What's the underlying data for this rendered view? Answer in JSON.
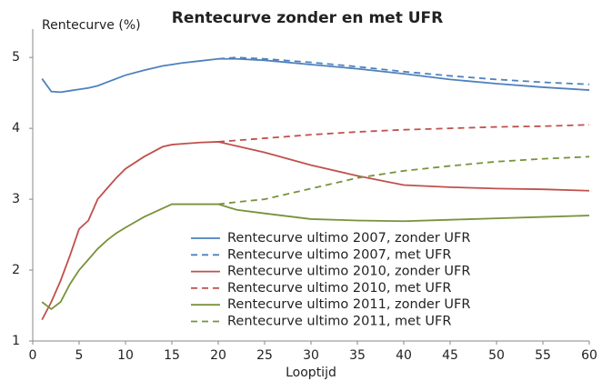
{
  "chart_data": {
    "type": "line",
    "title": "Rentecurve zonder en met UFR",
    "y_label": "Rentecurve (%)",
    "x_label": "Looptijd",
    "x": [
      1,
      2,
      3,
      4,
      5,
      6,
      7,
      8,
      9,
      10,
      12,
      14,
      15,
      16,
      18,
      20,
      22,
      25,
      30,
      35,
      40,
      45,
      50,
      55,
      60
    ],
    "series": [
      {
        "name": "Rentecurve ultimo 2007, zonder UFR",
        "color": "#4f81bd",
        "dashed": false,
        "values": [
          4.7,
          4.52,
          4.51,
          4.53,
          4.55,
          4.57,
          4.6,
          4.65,
          4.7,
          4.75,
          4.82,
          4.88,
          4.9,
          4.92,
          4.95,
          4.98,
          4.98,
          4.96,
          4.9,
          4.84,
          4.77,
          4.69,
          4.63,
          4.58,
          4.54
        ]
      },
      {
        "name": "Rentecurve ultimo 2007, met UFR",
        "color": "#4f81bd",
        "dashed": true,
        "values": [
          null,
          null,
          null,
          null,
          null,
          null,
          null,
          null,
          null,
          null,
          null,
          null,
          null,
          null,
          null,
          4.98,
          5.0,
          4.98,
          4.93,
          4.87,
          4.8,
          4.74,
          4.69,
          4.65,
          4.62
        ]
      },
      {
        "name": "Rentecurve ultimo 2010, zonder UFR",
        "color": "#c0504d",
        "dashed": false,
        "values": [
          1.3,
          1.55,
          1.85,
          2.2,
          2.58,
          2.7,
          3.0,
          3.15,
          3.3,
          3.43,
          3.6,
          3.74,
          3.77,
          3.78,
          3.8,
          3.81,
          3.75,
          3.66,
          3.48,
          3.33,
          3.2,
          3.17,
          3.15,
          3.14,
          3.12
        ]
      },
      {
        "name": "Rentecurve ultimo 2010, met UFR",
        "color": "#c0504d",
        "dashed": true,
        "values": [
          null,
          null,
          null,
          null,
          null,
          null,
          null,
          null,
          null,
          null,
          null,
          null,
          null,
          null,
          null,
          3.81,
          3.83,
          3.86,
          3.91,
          3.95,
          3.98,
          4.0,
          4.02,
          4.03,
          4.05
        ]
      },
      {
        "name": "Rentecurve ultimo 2011, zonder UFR",
        "color": "#77933c",
        "dashed": false,
        "values": [
          1.55,
          1.45,
          1.55,
          1.8,
          2.0,
          2.15,
          2.3,
          2.42,
          2.52,
          2.6,
          2.75,
          2.87,
          2.93,
          2.93,
          2.93,
          2.93,
          2.85,
          2.8,
          2.72,
          2.7,
          2.69,
          2.71,
          2.73,
          2.75,
          2.77
        ]
      },
      {
        "name": "Rentecurve ultimo 2011, met UFR",
        "color": "#77933c",
        "dashed": true,
        "values": [
          null,
          null,
          null,
          null,
          null,
          null,
          null,
          null,
          null,
          null,
          null,
          null,
          null,
          null,
          null,
          2.93,
          2.96,
          3.0,
          3.15,
          3.3,
          3.4,
          3.47,
          3.53,
          3.57,
          3.6
        ]
      }
    ],
    "xlim": [
      0,
      60
    ],
    "xticks": [
      0,
      5,
      10,
      15,
      20,
      25,
      30,
      35,
      40,
      45,
      50,
      55,
      60
    ],
    "ylim": [
      1,
      5.4
    ],
    "yticks": [
      1,
      2,
      3,
      4,
      5
    ],
    "grid": false
  }
}
